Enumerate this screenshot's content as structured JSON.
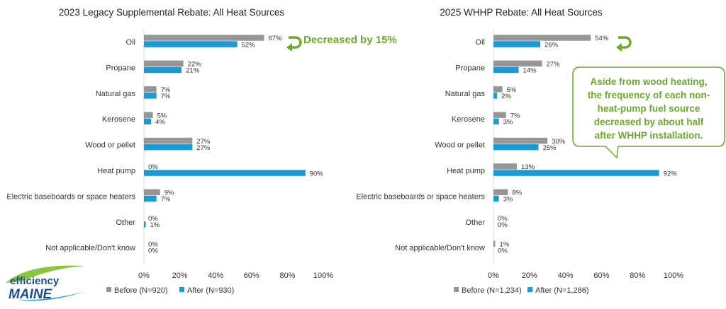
{
  "colors": {
    "before": "#969696",
    "after": "#1b9ad6",
    "accent": "#6aab2a",
    "axis": "#d9d9d9"
  },
  "logo": {
    "line1": "efficiency",
    "line2": "MAINE"
  },
  "annotations": {
    "decreased": "Decreased by 15%",
    "callout": [
      "Aside from wood heating,",
      "the frequency of each non-",
      "heat-pump fuel source",
      "decreased by about half",
      "after WHHP installation."
    ]
  },
  "chart_data": [
    {
      "type": "bar",
      "orientation": "horizontal",
      "title": "2023 Legacy Supplemental Rebate: All Heat Sources",
      "categories": [
        "Oil",
        "Propane",
        "Natural gas",
        "Kerosene",
        "Wood or pellet",
        "Heat pump",
        "Electric baseboards or space heaters",
        "Other",
        "Not applicable/Don't know"
      ],
      "series": [
        {
          "name": "Before (N=920)",
          "color": "#969696",
          "values": [
            67,
            22,
            7,
            5,
            27,
            0,
            9,
            0,
            0
          ],
          "labels": [
            "67%",
            "22%",
            "7%",
            "5%",
            "27%",
            "0%",
            "9%",
            "0%",
            "0%"
          ]
        },
        {
          "name": "After (N=930)",
          "color": "#1b9ad6",
          "values": [
            52,
            21,
            7,
            4,
            27,
            90,
            7,
            1,
            0
          ],
          "labels": [
            "52%",
            "21%",
            "7%",
            "4%",
            "27%",
            "90%",
            "7%",
            "1%",
            "0%"
          ]
        }
      ],
      "xlim": [
        0,
        100
      ],
      "xticks": [
        "0%",
        "20%",
        "40%",
        "60%",
        "80%",
        "100%"
      ],
      "legend_position": "bottom"
    },
    {
      "type": "bar",
      "orientation": "horizontal",
      "title": "2025 WHHP Rebate: All Heat Sources",
      "categories": [
        "Oil",
        "Propane",
        "Natural gas",
        "Kerosene",
        "Wood or pellet",
        "Heat pump",
        "Electric baseboards or space heaters",
        "Other",
        "Not applicable/Don't know"
      ],
      "series": [
        {
          "name": "Before (N=1,234)",
          "color": "#969696",
          "values": [
            54,
            27,
            5,
            7,
            30,
            13,
            8,
            0,
            1
          ],
          "labels": [
            "54%",
            "27%",
            "5%",
            "7%",
            "30%",
            "13%",
            "8%",
            "0%",
            "1%"
          ]
        },
        {
          "name": "After (N=1,286)",
          "color": "#1b9ad6",
          "values": [
            26,
            14,
            2,
            3,
            25,
            92,
            3,
            0,
            0
          ],
          "labels": [
            "26%",
            "14%",
            "2%",
            "3%",
            "25%",
            "92%",
            "3%",
            "0%",
            "0%"
          ]
        }
      ],
      "xlim": [
        0,
        100
      ],
      "xticks": [
        "0%",
        "20%",
        "40%",
        "60%",
        "80%",
        "100%"
      ],
      "legend_position": "bottom"
    }
  ]
}
